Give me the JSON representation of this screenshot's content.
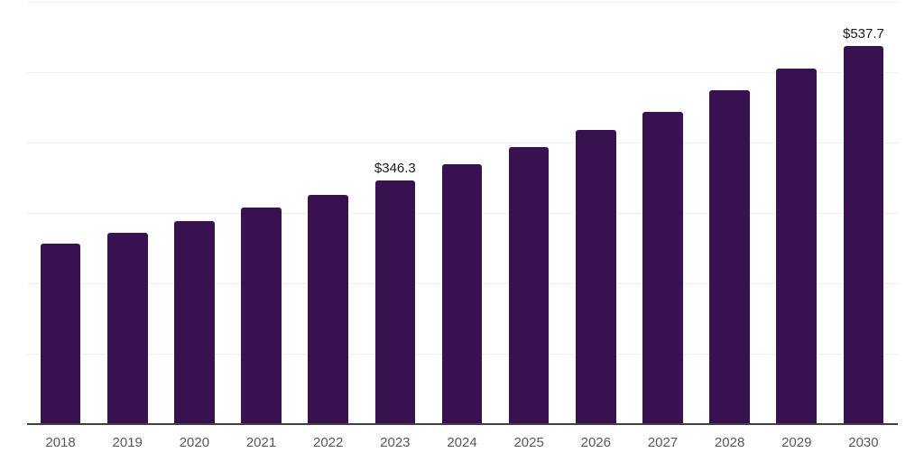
{
  "chart": {
    "background_color": "#ffffff",
    "bar_color": "#371150",
    "value_label_color": "#1a1a1a",
    "tick_label_color": "#595959",
    "axis_color": "#404040",
    "gridline_color": "#f0f0f0"
  },
  "chart_data": {
    "type": "bar",
    "title": "",
    "xlabel": "",
    "ylabel": "",
    "categories": [
      "2018",
      "2019",
      "2020",
      "2021",
      "2022",
      "2023",
      "2024",
      "2025",
      "2026",
      "2027",
      "2028",
      "2029",
      "2030"
    ],
    "values": [
      257,
      272,
      289,
      308,
      326,
      346.3,
      369,
      393,
      418,
      444,
      475,
      505,
      537.7
    ],
    "labeled_points": [
      {
        "category": "2023",
        "label": "$346.3"
      },
      {
        "category": "2030",
        "label": "$537.7"
      }
    ],
    "ylim": [
      0,
      600
    ],
    "gridline_step": 100,
    "grid": true,
    "legend": false,
    "y_tick_labels_visible": false
  }
}
